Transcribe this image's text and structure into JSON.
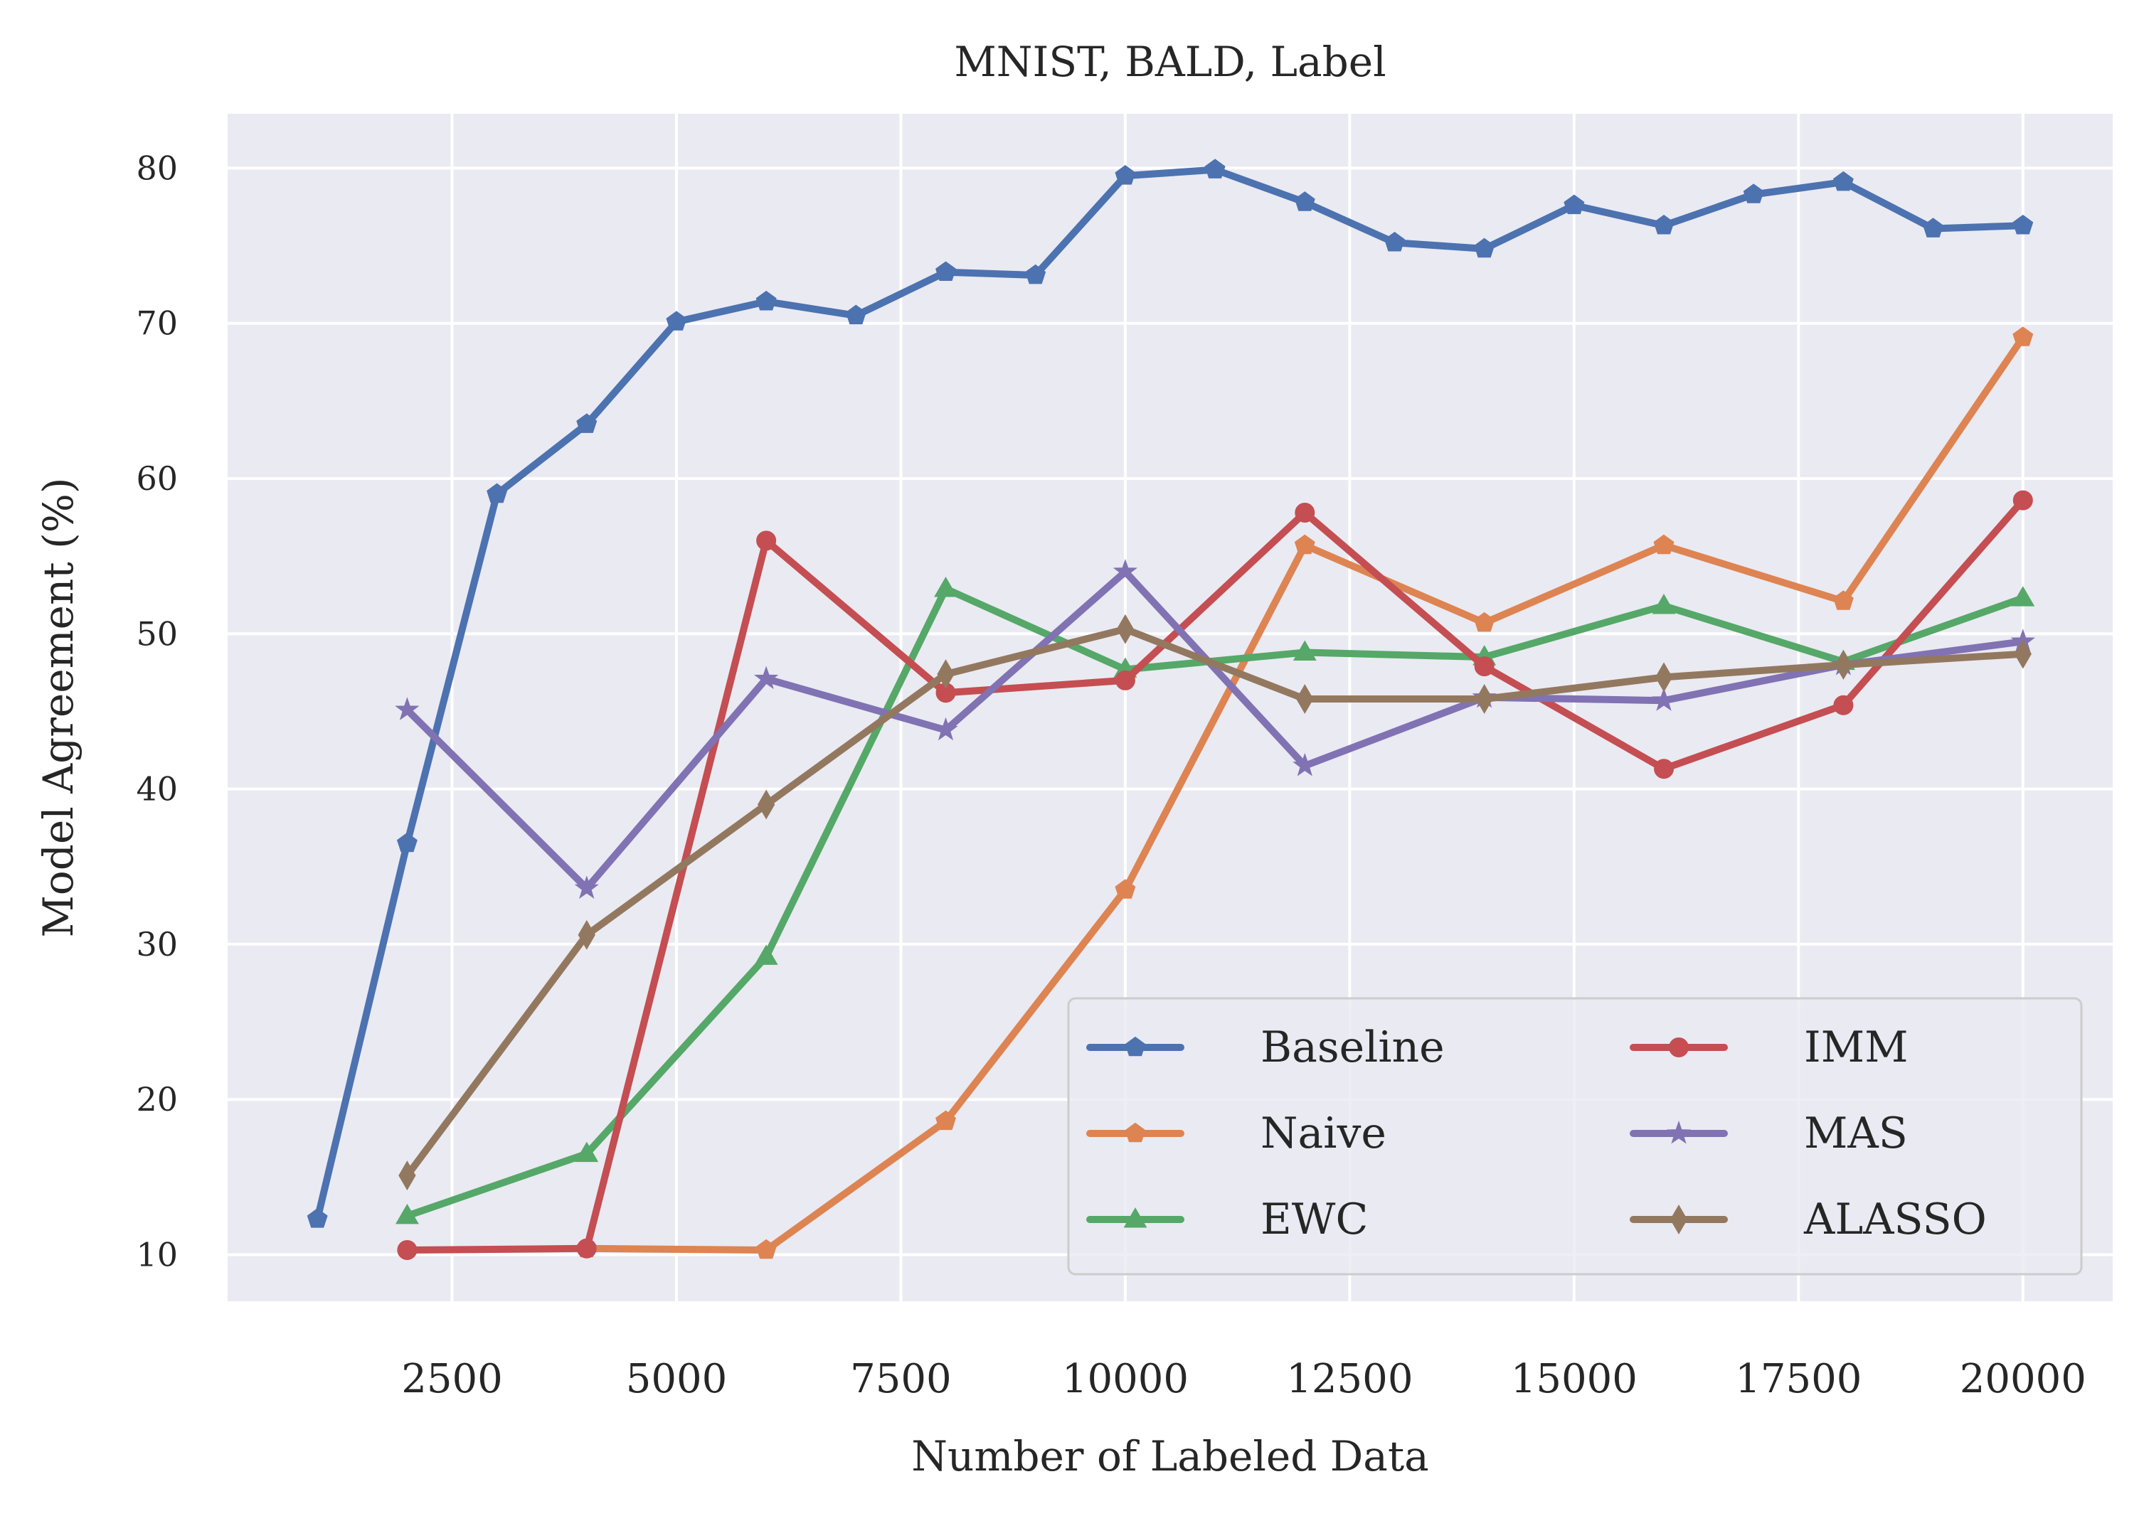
{
  "chart_data": {
    "type": "line",
    "title": "MNIST, BALD, Label",
    "xlabel": "Number of Labeled Data",
    "ylabel": "Model Agreement (%)",
    "xlim": [
      0,
      21000
    ],
    "ylim": [
      7,
      83.5
    ],
    "xticks": [
      2500,
      5000,
      7500,
      10000,
      12500,
      15000,
      17500,
      20000
    ],
    "yticks": [
      10,
      20,
      30,
      40,
      50,
      60,
      70,
      80
    ],
    "grid": true,
    "legend_position": "bottom-right",
    "legend_columns": 2,
    "series": [
      {
        "name": "Baseline",
        "color": "#4c72b0",
        "marker": "pentagon",
        "x": [
          1000,
          2000,
          3000,
          4000,
          5000,
          6000,
          7000,
          8000,
          9000,
          10000,
          11000,
          12000,
          13000,
          14000,
          15000,
          16000,
          17000,
          18000,
          19000,
          20000
        ],
        "y": [
          12.3,
          36.5,
          59.0,
          63.5,
          70.1,
          71.4,
          70.5,
          73.3,
          73.1,
          79.5,
          79.9,
          77.8,
          75.2,
          74.8,
          77.6,
          76.3,
          78.3,
          79.1,
          76.1,
          76.3
        ]
      },
      {
        "name": "Naive",
        "color": "#dd8452",
        "marker": "pentagon",
        "x": [
          4000,
          6000,
          8000,
          10000,
          12000,
          14000,
          16000,
          18000,
          20000
        ],
        "y": [
          10.4,
          10.3,
          18.6,
          33.5,
          55.7,
          50.7,
          55.7,
          52.1,
          69.1
        ]
      },
      {
        "name": "EWC",
        "color": "#55a868",
        "marker": "triangle",
        "x": [
          2000,
          4000,
          6000,
          8000,
          10000,
          12000,
          14000,
          16000,
          18000,
          20000
        ],
        "y": [
          12.5,
          16.5,
          29.2,
          52.9,
          47.7,
          48.8,
          48.5,
          51.8,
          48.2,
          52.3
        ]
      },
      {
        "name": "IMM",
        "color": "#c44e52",
        "marker": "circle",
        "x": [
          2000,
          4000,
          6000,
          8000,
          10000,
          12000,
          14000,
          16000,
          18000,
          20000
        ],
        "y": [
          10.3,
          10.4,
          56.0,
          46.2,
          47.0,
          57.8,
          47.9,
          41.3,
          45.4,
          58.6
        ]
      },
      {
        "name": "MAS",
        "color": "#8172b3",
        "marker": "star",
        "x": [
          2000,
          4000,
          6000,
          8000,
          10000,
          12000,
          14000,
          16000,
          18000,
          20000
        ],
        "y": [
          45.1,
          33.6,
          47.1,
          43.8,
          54.0,
          41.5,
          45.9,
          45.7,
          48.0,
          49.5
        ]
      },
      {
        "name": "ALASSO",
        "color": "#937860",
        "marker": "thin_diamond",
        "x": [
          2000,
          4000,
          6000,
          8000,
          10000,
          12000,
          14000,
          16000,
          18000,
          20000
        ],
        "y": [
          15.1,
          30.6,
          39.0,
          47.4,
          50.3,
          45.8,
          45.8,
          47.2,
          48.0,
          48.7
        ]
      }
    ]
  }
}
